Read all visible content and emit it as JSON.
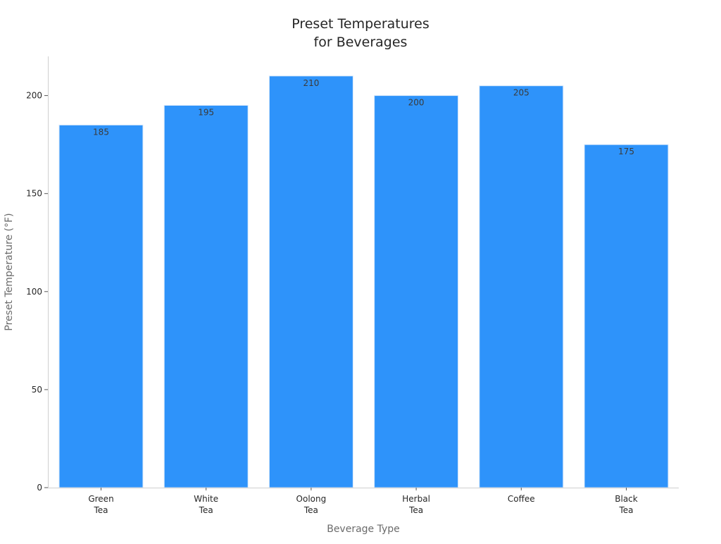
{
  "chart_data": {
    "type": "bar",
    "title": [
      "Preset Temperatures",
      "for Beverages"
    ],
    "xlabel": "Beverage Type",
    "ylabel": "Preset Temperature (°F)",
    "categories": [
      [
        "Green",
        "Tea"
      ],
      [
        "White",
        "Tea"
      ],
      [
        "Oolong",
        "Tea"
      ],
      [
        "Herbal",
        "Tea"
      ],
      [
        "Coffee"
      ],
      [
        "Black",
        "Tea"
      ]
    ],
    "values": [
      185,
      195,
      210,
      200,
      205,
      175
    ],
    "data_labels": [
      "185",
      "195",
      "210",
      "200",
      "205",
      "175"
    ],
    "ylim": [
      0,
      220
    ],
    "yticks": [
      0,
      50,
      100,
      150,
      200
    ],
    "ytick_labels": [
      "0",
      "50",
      "100",
      "150",
      "200"
    ],
    "bar_color": "#2e93fa",
    "grid": false,
    "legend": "none"
  }
}
